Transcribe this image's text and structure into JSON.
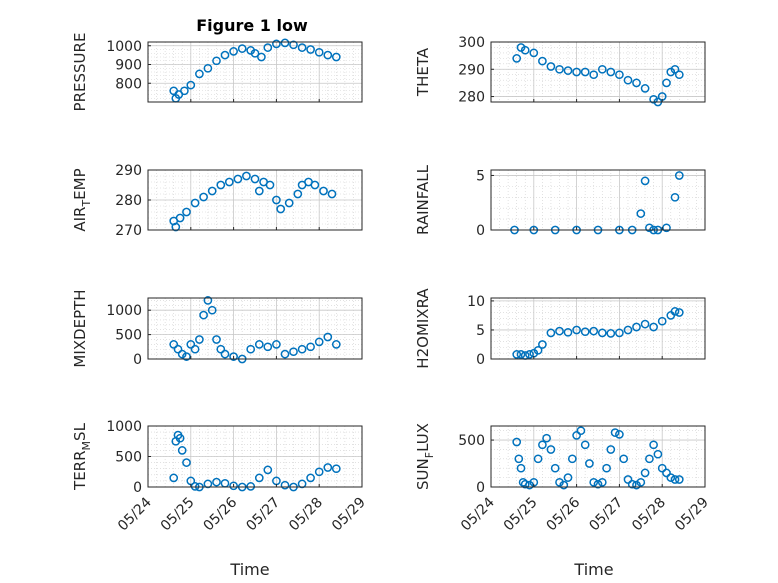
{
  "figure": {
    "title": "Figure 1 low",
    "xlabel": "Time",
    "marker_color": "#0072BD",
    "x_ticks": [
      "05/24",
      "05/25",
      "05/26",
      "05/27",
      "05/28",
      "05/29"
    ]
  },
  "chart_data": [
    {
      "type": "scatter",
      "ylabel": "PRESSURE",
      "ylabel_sub": "",
      "ylabel_tail": "",
      "xlim": [
        0,
        5
      ],
      "ylim": [
        700,
        1020
      ],
      "yticks": [
        800,
        900,
        1000
      ],
      "x": [
        0.6,
        0.65,
        0.72,
        0.85,
        1.0,
        1.2,
        1.4,
        1.6,
        1.8,
        2.0,
        2.2,
        2.4,
        2.5,
        2.65,
        2.8,
        3.0,
        3.2,
        3.4,
        3.6,
        3.8,
        4.0,
        4.2,
        4.4
      ],
      "y": [
        760,
        720,
        740,
        760,
        790,
        850,
        880,
        920,
        950,
        970,
        985,
        975,
        960,
        940,
        990,
        1010,
        1015,
        1005,
        990,
        980,
        965,
        950,
        940
      ]
    },
    {
      "type": "scatter",
      "ylabel": "THETA",
      "ylabel_sub": "",
      "ylabel_tail": "",
      "xlim": [
        0,
        5
      ],
      "ylim": [
        278,
        300
      ],
      "yticks": [
        280,
        290,
        300
      ],
      "x": [
        0.6,
        0.7,
        0.8,
        1.0,
        1.2,
        1.4,
        1.6,
        1.8,
        2.0,
        2.2,
        2.4,
        2.6,
        2.8,
        3.0,
        3.2,
        3.4,
        3.6,
        3.8,
        3.9,
        4.0,
        4.1,
        4.2,
        4.3,
        4.4
      ],
      "y": [
        294,
        298,
        297,
        296,
        293,
        291,
        290,
        289.5,
        289,
        289,
        288,
        290,
        289,
        288,
        286,
        285,
        283,
        279,
        278,
        280,
        285,
        289,
        290,
        288
      ]
    },
    {
      "type": "scatter",
      "ylabel": "AIR",
      "ylabel_sub": "T",
      "ylabel_tail": "EMP",
      "xlim": [
        0,
        5
      ],
      "ylim": [
        270,
        290
      ],
      "yticks": [
        270,
        280,
        290
      ],
      "x": [
        0.6,
        0.65,
        0.75,
        0.9,
        1.1,
        1.3,
        1.5,
        1.7,
        1.9,
        2.1,
        2.3,
        2.5,
        2.6,
        2.7,
        2.85,
        3.0,
        3.1,
        3.3,
        3.5,
        3.6,
        3.75,
        3.9,
        4.1,
        4.3
      ],
      "y": [
        273,
        271,
        274,
        276,
        279,
        281,
        283,
        285,
        286,
        287,
        288,
        287,
        283,
        286,
        285,
        280,
        277,
        279,
        282,
        285,
        286,
        285,
        283,
        282
      ]
    },
    {
      "type": "scatter",
      "ylabel": "RAINFALL",
      "ylabel_sub": "",
      "ylabel_tail": "",
      "xlim": [
        0,
        5
      ],
      "ylim": [
        0,
        5.5
      ],
      "yticks": [
        0,
        5
      ],
      "x": [
        0.55,
        1.0,
        1.5,
        2.0,
        2.5,
        3.0,
        3.3,
        3.5,
        3.6,
        3.7,
        3.8,
        3.9,
        4.1,
        4.3,
        4.4
      ],
      "y": [
        0,
        0,
        0,
        0,
        0,
        0,
        0,
        1.5,
        4.5,
        0.2,
        0,
        0,
        0.2,
        3.0,
        5.0
      ]
    },
    {
      "type": "scatter",
      "ylabel": "MIXDEPTH",
      "ylabel_sub": "",
      "ylabel_tail": "",
      "xlim": [
        0,
        5
      ],
      "ylim": [
        0,
        1250
      ],
      "yticks": [
        0,
        500,
        1000
      ],
      "x": [
        0.6,
        0.7,
        0.8,
        0.9,
        1.0,
        1.1,
        1.2,
        1.3,
        1.4,
        1.5,
        1.6,
        1.7,
        1.8,
        2.0,
        2.2,
        2.4,
        2.6,
        2.8,
        3.0,
        3.2,
        3.4,
        3.6,
        3.8,
        4.0,
        4.2,
        4.4
      ],
      "y": [
        300,
        200,
        100,
        50,
        300,
        200,
        400,
        900,
        1200,
        1000,
        400,
        200,
        100,
        50,
        0,
        200,
        300,
        250,
        300,
        100,
        150,
        200,
        250,
        350,
        450,
        300
      ]
    },
    {
      "type": "scatter",
      "ylabel": "H2OMIXRA",
      "ylabel_sub": "",
      "ylabel_tail": "",
      "xlim": [
        0,
        5
      ],
      "ylim": [
        0,
        10.5
      ],
      "yticks": [
        0,
        5,
        10
      ],
      "x": [
        0.6,
        0.7,
        0.8,
        0.9,
        1.0,
        1.1,
        1.2,
        1.4,
        1.6,
        1.8,
        2.0,
        2.2,
        2.4,
        2.6,
        2.8,
        3.0,
        3.2,
        3.4,
        3.6,
        3.8,
        4.0,
        4.2,
        4.3,
        4.4
      ],
      "y": [
        0.8,
        0.8,
        0.6,
        0.8,
        1.0,
        1.5,
        2.5,
        4.5,
        4.8,
        4.6,
        5.0,
        4.7,
        4.8,
        4.5,
        4.4,
        4.5,
        5.0,
        5.5,
        6.0,
        5.5,
        6.5,
        7.5,
        8.2,
        8.0
      ]
    },
    {
      "type": "scatter",
      "ylabel": "TERR",
      "ylabel_sub": "M",
      "ylabel_tail": "SL",
      "xlim": [
        0,
        5
      ],
      "ylim": [
        0,
        1000
      ],
      "yticks": [
        0,
        500,
        1000
      ],
      "x": [
        0.6,
        0.65,
        0.7,
        0.75,
        0.8,
        0.9,
        1.0,
        1.1,
        1.2,
        1.4,
        1.6,
        1.8,
        2.0,
        2.2,
        2.4,
        2.6,
        2.8,
        3.0,
        3.2,
        3.4,
        3.6,
        3.8,
        4.0,
        4.2,
        4.4
      ],
      "y": [
        150,
        750,
        850,
        800,
        600,
        400,
        100,
        10,
        0,
        50,
        80,
        60,
        20,
        0,
        10,
        150,
        280,
        100,
        30,
        0,
        50,
        150,
        250,
        320,
        300
      ]
    },
    {
      "type": "scatter",
      "ylabel": "SUN",
      "ylabel_sub": "F",
      "ylabel_tail": "LUX",
      "xlim": [
        0,
        5
      ],
      "ylim": [
        0,
        650
      ],
      "yticks": [
        0,
        500
      ],
      "x": [
        0.6,
        0.65,
        0.7,
        0.75,
        0.8,
        0.9,
        1.0,
        1.1,
        1.2,
        1.3,
        1.4,
        1.5,
        1.6,
        1.7,
        1.8,
        1.9,
        2.0,
        2.1,
        2.2,
        2.3,
        2.4,
        2.5,
        2.6,
        2.7,
        2.8,
        2.9,
        3.0,
        3.1,
        3.2,
        3.3,
        3.4,
        3.5,
        3.6,
        3.7,
        3.8,
        3.9,
        4.0,
        4.1,
        4.2,
        4.3,
        4.4
      ],
      "y": [
        480,
        300,
        200,
        50,
        30,
        20,
        50,
        300,
        450,
        520,
        400,
        200,
        50,
        20,
        100,
        300,
        550,
        600,
        450,
        250,
        50,
        30,
        50,
        200,
        400,
        580,
        560,
        300,
        80,
        30,
        20,
        50,
        150,
        300,
        450,
        350,
        200,
        150,
        100,
        80,
        80
      ]
    }
  ]
}
